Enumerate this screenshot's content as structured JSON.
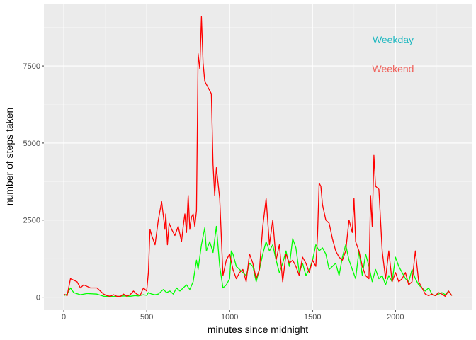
{
  "chart_data": {
    "type": "line",
    "xlabel": "minutes since midnight",
    "ylabel": "number of steps taken",
    "xlim": [
      -120,
      2460
    ],
    "ylim": [
      -400,
      9500
    ],
    "x_ticks": [
      0,
      500,
      1000,
      1500,
      2000
    ],
    "x_tick_labels": [
      "0",
      "500",
      "1000",
      "1500",
      "2000"
    ],
    "y_ticks": [
      0,
      2500,
      5000,
      7500
    ],
    "y_tick_labels": [
      "0",
      "2500",
      "5000",
      "7500"
    ],
    "grid": true,
    "colors": {
      "panel": "#ebebeb",
      "grid_major": "#ffffff",
      "grid_minor": "#f5f5f5"
    },
    "legend": {
      "placement": "top-right",
      "labels": [
        {
          "text": "Weekday",
          "color": "#1fb8c0"
        },
        {
          "text": "Weekend",
          "color": "#f0605a"
        }
      ]
    },
    "series": [
      {
        "color": "#00ff00",
        "x": [
          0,
          20,
          40,
          60,
          100,
          140,
          200,
          240,
          280,
          320,
          360,
          400,
          430,
          450,
          480,
          500,
          510,
          530,
          550,
          570,
          600,
          620,
          640,
          660,
          680,
          700,
          720,
          740,
          760,
          780,
          800,
          810,
          830,
          850,
          860,
          880,
          900,
          920,
          940,
          960,
          980,
          1000,
          1010,
          1020,
          1040,
          1060,
          1080,
          1100,
          1120,
          1140,
          1160,
          1180,
          1200,
          1220,
          1240,
          1260,
          1280,
          1300,
          1320,
          1340,
          1360,
          1380,
          1400,
          1420,
          1440,
          1460,
          1480,
          1500,
          1520,
          1540,
          1560,
          1580,
          1600,
          1620,
          1640,
          1660,
          1680,
          1700,
          1720,
          1740,
          1760,
          1780,
          1800,
          1820,
          1840,
          1860,
          1880,
          1900,
          1920,
          1940,
          1960,
          1980,
          2000,
          2020,
          2040,
          2060,
          2080,
          2100,
          2120,
          2140,
          2160,
          2180,
          2200,
          2220,
          2240,
          2260,
          2280,
          2300,
          2320,
          2340
        ],
        "y": [
          50,
          100,
          300,
          150,
          80,
          120,
          100,
          30,
          20,
          20,
          40,
          30,
          50,
          40,
          80,
          60,
          150,
          100,
          80,
          100,
          250,
          150,
          200,
          100,
          300,
          200,
          300,
          400,
          250,
          500,
          1200,
          900,
          1700,
          2250,
          1500,
          1800,
          1450,
          2300,
          1000,
          300,
          400,
          600,
          1500,
          1400,
          1000,
          900,
          800,
          700,
          1100,
          1000,
          500,
          900,
          1400,
          1800,
          1500,
          1700,
          1200,
          800,
          1100,
          1500,
          1000,
          1900,
          1600,
          800,
          1100,
          700,
          900,
          1200,
          1700,
          1500,
          1600,
          1400,
          900,
          1000,
          1100,
          700,
          1300,
          1700,
          1200,
          900,
          600,
          1500,
          700,
          1400,
          1000,
          500,
          900,
          600,
          700,
          400,
          700,
          500,
          1300,
          1000,
          800,
          600,
          500,
          900,
          600,
          400,
          300,
          200,
          300,
          100,
          50,
          100,
          150,
          80,
          200,
          50
        ]
      },
      {
        "color": "#ff0000",
        "x": [
          0,
          20,
          40,
          60,
          80,
          100,
          120,
          140,
          160,
          180,
          200,
          220,
          240,
          260,
          280,
          300,
          320,
          340,
          360,
          380,
          400,
          420,
          440,
          460,
          480,
          500,
          510,
          520,
          530,
          550,
          570,
          590,
          610,
          615,
          625,
          635,
          650,
          670,
          690,
          710,
          720,
          730,
          740,
          750,
          760,
          770,
          780,
          790,
          800,
          810,
          820,
          830,
          840,
          850,
          860,
          870,
          880,
          890,
          900,
          910,
          920,
          940,
          960,
          980,
          1000,
          1020,
          1040,
          1060,
          1080,
          1100,
          1120,
          1140,
          1160,
          1180,
          1200,
          1220,
          1240,
          1260,
          1280,
          1300,
          1320,
          1340,
          1360,
          1380,
          1400,
          1420,
          1440,
          1460,
          1480,
          1500,
          1520,
          1530,
          1540,
          1550,
          1560,
          1580,
          1600,
          1620,
          1640,
          1660,
          1680,
          1700,
          1720,
          1740,
          1750,
          1760,
          1780,
          1800,
          1820,
          1840,
          1850,
          1860,
          1870,
          1880,
          1900,
          1920,
          1940,
          1960,
          1980,
          2000,
          2020,
          2040,
          2060,
          2080,
          2100,
          2120,
          2140,
          2160,
          2180,
          2200,
          2220,
          2240,
          2260,
          2280,
          2300,
          2320,
          2340
        ],
        "y": [
          100,
          50,
          600,
          550,
          500,
          300,
          400,
          350,
          300,
          300,
          300,
          200,
          100,
          50,
          30,
          80,
          30,
          20,
          100,
          30,
          80,
          200,
          100,
          50,
          300,
          200,
          800,
          2200,
          2000,
          1700,
          2500,
          3100,
          2200,
          2700,
          1700,
          2400,
          2200,
          2000,
          2300,
          1800,
          2300,
          2700,
          2100,
          3300,
          2200,
          2600,
          2700,
          2300,
          2800,
          7900,
          7400,
          9100,
          7600,
          7000,
          6900,
          6800,
          6700,
          6600,
          4300,
          3300,
          4200,
          3200,
          700,
          1200,
          1400,
          900,
          600,
          800,
          900,
          500,
          1400,
          1100,
          600,
          900,
          2300,
          3200,
          1700,
          2500,
          1200,
          1700,
          500,
          1400,
          1100,
          1200,
          1000,
          700,
          1300,
          1100,
          800,
          1200,
          1000,
          2000,
          3700,
          3600,
          3000,
          2500,
          2400,
          1900,
          1500,
          1300,
          1200,
          1500,
          2500,
          2100,
          3200,
          1800,
          1500,
          1000,
          700,
          600,
          3300,
          2300,
          4600,
          3600,
          3500,
          1500,
          600,
          1500,
          500,
          800,
          500,
          600,
          800,
          400,
          500,
          1500,
          500,
          300,
          100,
          50,
          100,
          50,
          150,
          100,
          30,
          200,
          50
        ]
      }
    ]
  }
}
